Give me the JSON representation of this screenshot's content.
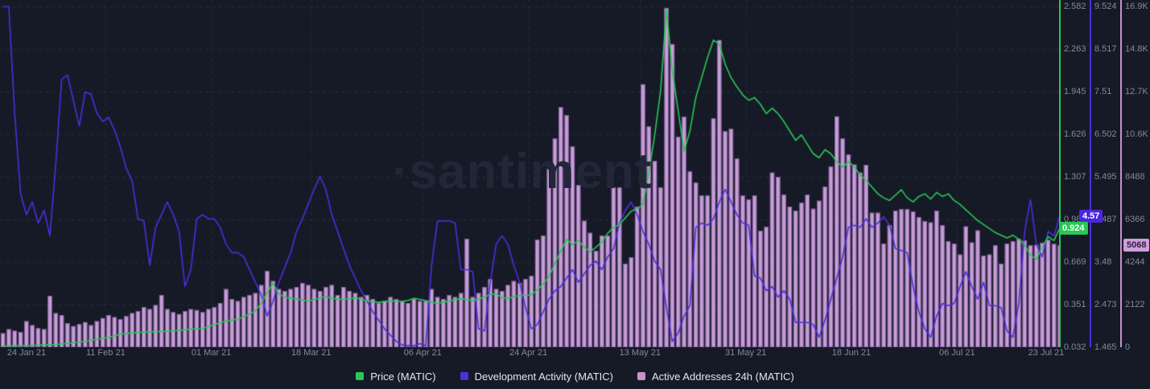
{
  "watermark": "·santiment",
  "legend": [
    {
      "label": "Price (MATIC)",
      "color": "#26c953"
    },
    {
      "label": "Development Activity (MATIC)",
      "color": "#4b2fe0"
    },
    {
      "label": "Active Addresses 24h (MATIC)",
      "color": "#c792ca"
    }
  ],
  "badges": {
    "price": "0.924",
    "dev": "4.57",
    "addr": "5068"
  },
  "colors": {
    "background": "#161a27",
    "grid": "rgba(150,160,190,0.13)",
    "price_line": "#26c953",
    "dev_line": "#4b2fe0",
    "bar_fill": "#c79fd6",
    "bar_edge": "rgba(90,50,120,0.55)",
    "tick_text": "#7f899e"
  },
  "chart_data": {
    "type": "mixed",
    "x": {
      "unit": "day",
      "days": 181,
      "start": "24 Jan 21",
      "end": "23 Jul 21",
      "labels": [
        {
          "text": "24 Jan 21",
          "day": 0
        },
        {
          "text": "11 Feb 21",
          "day": 18
        },
        {
          "text": "01 Mar 21",
          "day": 36
        },
        {
          "text": "18 Mar 21",
          "day": 53
        },
        {
          "text": "06 Apr 21",
          "day": 72
        },
        {
          "text": "24 Apr 21",
          "day": 90
        },
        {
          "text": "13 May 21",
          "day": 109
        },
        {
          "text": "31 May 21",
          "day": 127
        },
        {
          "text": "18 Jun 21",
          "day": 145
        },
        {
          "text": "06 Jul 21",
          "day": 163
        },
        {
          "text": "23 Jul 21",
          "day": 180
        }
      ]
    },
    "series": [
      {
        "name": "Price (MATIC)",
        "type": "line",
        "color": "#26c953",
        "axis": {
          "min": 0.032,
          "max": 2.582,
          "ticks": [
            "0.032",
            "0.351",
            "0.669",
            "0.988",
            "1.307",
            "1.626",
            "1.945",
            "2.263",
            "2.582"
          ]
        },
        "last_value": 0.924,
        "values": [
          0.04,
          0.041,
          0.042,
          0.043,
          0.044,
          0.045,
          0.047,
          0.049,
          0.051,
          0.053,
          0.056,
          0.06,
          0.065,
          0.07,
          0.076,
          0.085,
          0.092,
          0.098,
          0.105,
          0.118,
          0.13,
          0.135,
          0.138,
          0.142,
          0.145,
          0.147,
          0.148,
          0.15,
          0.152,
          0.155,
          0.158,
          0.162,
          0.168,
          0.17,
          0.172,
          0.185,
          0.2,
          0.215,
          0.228,
          0.235,
          0.242,
          0.26,
          0.28,
          0.305,
          0.36,
          0.44,
          0.51,
          0.43,
          0.405,
          0.398,
          0.392,
          0.385,
          0.378,
          0.388,
          0.4,
          0.41,
          0.398,
          0.392,
          0.388,
          0.395,
          0.402,
          0.39,
          0.38,
          0.372,
          0.368,
          0.374,
          0.38,
          0.376,
          0.374,
          0.382,
          0.398,
          0.39,
          0.38,
          0.368,
          0.36,
          0.368,
          0.378,
          0.386,
          0.395,
          0.388,
          0.38,
          0.392,
          0.408,
          0.425,
          0.432,
          0.402,
          0.398,
          0.41,
          0.418,
          0.42,
          0.425,
          0.46,
          0.505,
          0.56,
          0.66,
          0.75,
          0.84,
          0.8,
          0.83,
          0.78,
          0.745,
          0.78,
          0.82,
          0.885,
          0.93,
          0.95,
          1.0,
          1.05,
          1.07,
          1.1,
          1.34,
          1.62,
          1.95,
          2.56,
          2.1,
          1.8,
          1.5,
          1.65,
          1.9,
          2.05,
          2.2,
          2.33,
          2.3,
          2.15,
          2.05,
          1.98,
          1.92,
          1.88,
          1.9,
          1.85,
          1.78,
          1.82,
          1.78,
          1.72,
          1.65,
          1.58,
          1.62,
          1.55,
          1.48,
          1.45,
          1.51,
          1.48,
          1.42,
          1.38,
          1.42,
          1.38,
          1.32,
          1.28,
          1.23,
          1.18,
          1.15,
          1.13,
          1.17,
          1.21,
          1.15,
          1.12,
          1.16,
          1.18,
          1.14,
          1.19,
          1.16,
          1.18,
          1.13,
          1.1,
          1.06,
          1.02,
          0.98,
          0.95,
          0.92,
          0.89,
          0.87,
          0.85,
          0.87,
          0.84,
          0.8,
          0.72,
          0.69,
          0.78,
          0.86,
          0.83,
          0.924
        ]
      },
      {
        "name": "Development Activity (MATIC)",
        "type": "line",
        "color": "#4b2fe0",
        "axis": {
          "min": 1.465,
          "max": 9.524,
          "ticks": [
            "1.465",
            "2.473",
            "3.48",
            "4.487",
            "5.495",
            "6.502",
            "7.51",
            "8.517",
            "9.524"
          ]
        },
        "last_value": 4.57,
        "values": [
          9.52,
          9.52,
          7.0,
          5.1,
          4.6,
          4.9,
          4.4,
          4.7,
          4.1,
          5.8,
          7.8,
          7.9,
          7.3,
          6.7,
          7.5,
          7.45,
          7.0,
          6.8,
          6.9,
          6.6,
          6.2,
          5.7,
          5.4,
          4.5,
          4.45,
          3.4,
          4.3,
          4.6,
          4.9,
          4.6,
          4.2,
          2.9,
          3.3,
          4.5,
          4.6,
          4.5,
          4.5,
          4.3,
          3.9,
          3.7,
          3.7,
          3.6,
          3.3,
          3.0,
          2.7,
          2.2,
          2.55,
          3.0,
          3.35,
          3.7,
          4.2,
          4.5,
          4.85,
          5.2,
          5.5,
          5.2,
          4.6,
          4.2,
          3.8,
          3.4,
          3.1,
          2.8,
          2.55,
          2.3,
          2.1,
          1.9,
          1.75,
          1.6,
          1.52,
          1.5,
          1.5,
          1.55,
          1.5,
          3.4,
          4.45,
          4.45,
          4.45,
          4.4,
          3.3,
          3.3,
          3.25,
          1.9,
          1.85,
          3.0,
          3.9,
          4.1,
          3.9,
          3.4,
          3.0,
          2.4,
          1.9,
          2.0,
          2.3,
          2.6,
          2.8,
          2.9,
          3.1,
          3.3,
          3.0,
          3.2,
          3.4,
          3.5,
          3.3,
          3.6,
          3.8,
          4.4,
          4.7,
          4.9,
          4.6,
          4.2,
          3.9,
          3.5,
          3.3,
          2.4,
          1.6,
          1.8,
          2.2,
          2.45,
          4.3,
          4.4,
          4.35,
          4.5,
          4.9,
          5.2,
          4.9,
          4.6,
          4.4,
          4.35,
          3.15,
          3.1,
          2.8,
          2.9,
          2.65,
          2.8,
          2.6,
          2.05,
          2.05,
          2.05,
          2.0,
          1.7,
          2.1,
          2.6,
          3.1,
          3.6,
          4.3,
          4.35,
          4.3,
          4.5,
          4.3,
          4.4,
          4.55,
          4.35,
          3.8,
          3.75,
          3.7,
          2.9,
          2.3,
          1.9,
          1.7,
          2.2,
          2.5,
          2.45,
          2.5,
          2.9,
          3.25,
          2.9,
          2.6,
          3.0,
          2.45,
          2.45,
          2.4,
          1.85,
          1.7,
          2.5,
          4.2,
          4.95,
          3.9,
          3.6,
          4.2,
          4.1,
          4.57
        ]
      },
      {
        "name": "Active Addresses 24h (MATIC)",
        "type": "bar",
        "color": "#c792ca",
        "axis": {
          "min": 0,
          "max": 16976,
          "ticks": [
            "0",
            "2122",
            "4244",
            "6366",
            "8488",
            "10.6K",
            "12.7K",
            "14.8K",
            "16.9K"
          ]
        },
        "last_value": 5068,
        "values": [
          700,
          900,
          820,
          760,
          1300,
          1100,
          950,
          900,
          2560,
          1700,
          1600,
          1200,
          1050,
          1150,
          1250,
          1100,
          1300,
          1450,
          1600,
          1500,
          1400,
          1550,
          1700,
          1800,
          2000,
          1900,
          2100,
          2600,
          1900,
          1750,
          1650,
          1800,
          1900,
          1850,
          1750,
          1900,
          2000,
          2200,
          2900,
          2400,
          2300,
          2500,
          2600,
          2700,
          3100,
          3800,
          3300,
          2900,
          2800,
          2900,
          3000,
          3200,
          3100,
          2900,
          2800,
          3000,
          3100,
          2600,
          3000,
          2800,
          2700,
          2500,
          2600,
          2400,
          2200,
          2300,
          2500,
          2400,
          2300,
          2200,
          2400,
          2300,
          2300,
          2900,
          2500,
          2400,
          2600,
          2500,
          2700,
          5400,
          2500,
          2700,
          3000,
          3400,
          2900,
          2800,
          3100,
          3300,
          3200,
          3400,
          3560,
          5360,
          5560,
          8880,
          10400,
          11960,
          11560,
          10000,
          8080,
          6300,
          5700,
          4800,
          5560,
          5560,
          7960,
          7960,
          4160,
          4480,
          7000,
          13100,
          11000,
          9280,
          7960,
          16900,
          15100,
          10480,
          11480,
          8760,
          8200,
          7560,
          7560,
          11400,
          15300,
          10760,
          10880,
          9400,
          7560,
          7360,
          7560,
          5800,
          6000,
          8700,
          8480,
          7600,
          7000,
          6800,
          7200,
          7600,
          6900,
          7300,
          8000,
          9000,
          11500,
          10400,
          9600,
          9100,
          8700,
          9080,
          6700,
          6700,
          5160,
          6080,
          6800,
          6880,
          6880,
          6760,
          6480,
          6280,
          6220,
          6800,
          6080,
          5280,
          5160,
          4620,
          6020,
          5220,
          5820,
          4560,
          4620,
          5080,
          4160,
          5160,
          5280,
          5400,
          5320,
          5080,
          5100,
          5200,
          5350,
          5150,
          5068
        ]
      }
    ]
  }
}
